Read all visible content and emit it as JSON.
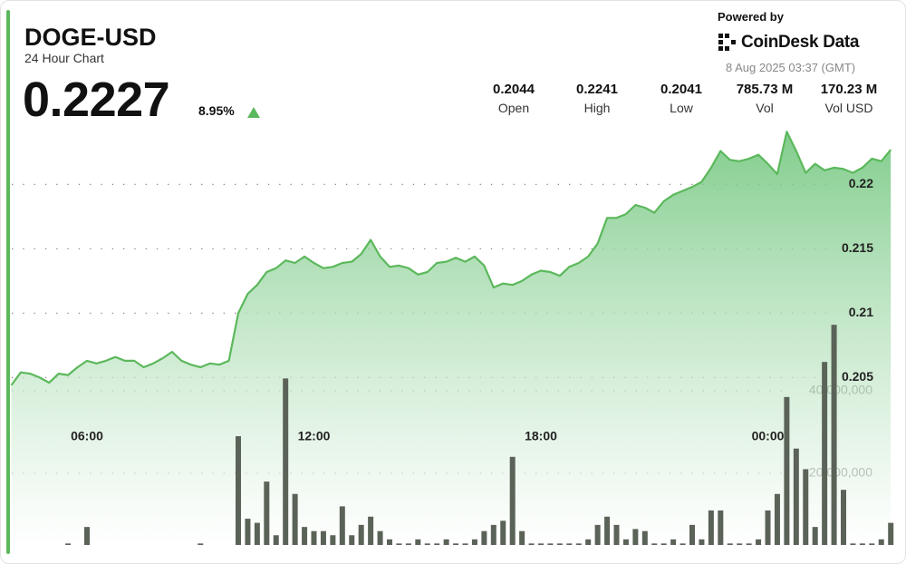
{
  "header": {
    "symbol": "DOGE-USD",
    "subtitle": "24 Hour Chart",
    "price": "0.2227",
    "change": "8.95%",
    "stats": [
      {
        "value": "0.2044",
        "label": "Open"
      },
      {
        "value": "0.2241",
        "label": "High"
      },
      {
        "value": "0.2041",
        "label": "Low"
      },
      {
        "value": "785.73 M",
        "label": "Vol"
      },
      {
        "value": "170.23 M",
        "label": "Vol USD"
      }
    ]
  },
  "branding": {
    "powered_by": "Powered by",
    "provider": "CoinDesk Data",
    "timestamp": "8 Aug 2025 03:37 (GMT)"
  },
  "chart_data": {
    "type": "line",
    "categories": [
      null,
      null,
      null,
      null,
      null,
      null,
      null,
      null,
      "06:00",
      null,
      null,
      null,
      null,
      null,
      null,
      null,
      null,
      null,
      null,
      null,
      null,
      null,
      null,
      null,
      null,
      null,
      null,
      null,
      null,
      null,
      null,
      null,
      "12:00",
      null,
      null,
      null,
      null,
      null,
      null,
      null,
      null,
      null,
      null,
      null,
      null,
      null,
      null,
      null,
      null,
      null,
      null,
      null,
      null,
      null,
      null,
      null,
      "18:00",
      null,
      null,
      null,
      null,
      null,
      null,
      null,
      null,
      null,
      null,
      null,
      null,
      null,
      null,
      null,
      null,
      null,
      null,
      null,
      null,
      null,
      null,
      null,
      "00:00",
      null,
      null,
      null,
      null,
      null,
      null,
      null,
      null,
      null,
      null,
      null,
      null,
      null
    ],
    "series": [
      {
        "color": "#5cb85c",
        "values": [
          0.2044,
          0.2054,
          0.2053,
          0.205,
          0.2046,
          0.2053,
          0.2052,
          0.2058,
          0.2063,
          0.2061,
          0.2063,
          0.2066,
          0.2063,
          0.2063,
          0.2058,
          0.2061,
          0.2065,
          0.207,
          0.2063,
          0.206,
          0.2058,
          0.2061,
          0.206,
          0.2063,
          0.21,
          0.2115,
          0.2122,
          0.2132,
          0.2135,
          0.2141,
          0.2139,
          0.2144,
          0.2139,
          0.2135,
          0.2136,
          0.2139,
          0.214,
          0.2146,
          0.2157,
          0.2144,
          0.2136,
          0.2137,
          0.2135,
          0.213,
          0.2132,
          0.2139,
          0.214,
          0.2143,
          0.214,
          0.2144,
          0.2137,
          0.212,
          0.2123,
          0.2122,
          0.2125,
          0.213,
          0.2133,
          0.2132,
          0.2129,
          0.2136,
          0.2139,
          0.2144,
          0.2154,
          0.2174,
          0.2174,
          0.2177,
          0.2184,
          0.2182,
          0.2178,
          0.2187,
          0.2192,
          0.2195,
          0.2198,
          0.2202,
          0.2213,
          0.2226,
          0.2219,
          0.2218,
          0.222,
          0.2223,
          0.2216,
          0.2208,
          0.2241,
          0.2226,
          0.2209,
          0.2216,
          0.2211,
          0.2213,
          0.2212,
          0.2209,
          0.2213,
          0.222,
          0.2218,
          0.2227
        ]
      },
      {
        "type": "bar",
        "axis": "y2",
        "color": "#5b6358",
        "values": [
          2000000,
          2000000,
          2000000,
          2000000,
          2000000,
          2000000,
          3000000,
          2000000,
          7000000,
          2000000,
          2000000,
          2000000,
          2000000,
          2000000,
          2000000,
          2000000,
          2000000,
          2000000,
          2000000,
          2000000,
          3000000,
          2000000,
          2000000,
          2000000,
          29000000,
          9000000,
          8000000,
          18000000,
          5000000,
          43000000,
          15000000,
          7000000,
          6000000,
          6000000,
          5000000,
          12000000,
          5000000,
          7500000,
          9500000,
          6000000,
          4000000,
          3000000,
          3000000,
          4000000,
          3000000,
          3000000,
          4000000,
          3000000,
          3000000,
          4000000,
          6000000,
          7500000,
          8500000,
          24000000,
          6000000,
          3000000,
          3000000,
          3000000,
          3000000,
          3000000,
          3000000,
          4000000,
          7500000,
          9500000,
          7500000,
          4000000,
          6500000,
          6000000,
          3000000,
          3000000,
          4000000,
          3000000,
          7500000,
          4000000,
          11000000,
          11000000,
          3000000,
          3000000,
          3000000,
          4000000,
          11000000,
          15000000,
          38500000,
          26000000,
          21000000,
          7000000,
          47000000,
          56000000,
          16000000,
          3000000,
          3000000,
          3000000,
          4000000,
          8000000
        ]
      }
    ],
    "ylim": [
      0.192,
      0.2245
    ],
    "yticks": [
      0.205,
      0.21,
      0.215,
      0.22
    ],
    "y2lim": [
      0,
      60000000
    ],
    "y2ticks": [
      {
        "value": 20000000,
        "label": "20,000,000"
      },
      {
        "value": 40000000,
        "label": "40,000,000"
      }
    ],
    "grid": true
  }
}
